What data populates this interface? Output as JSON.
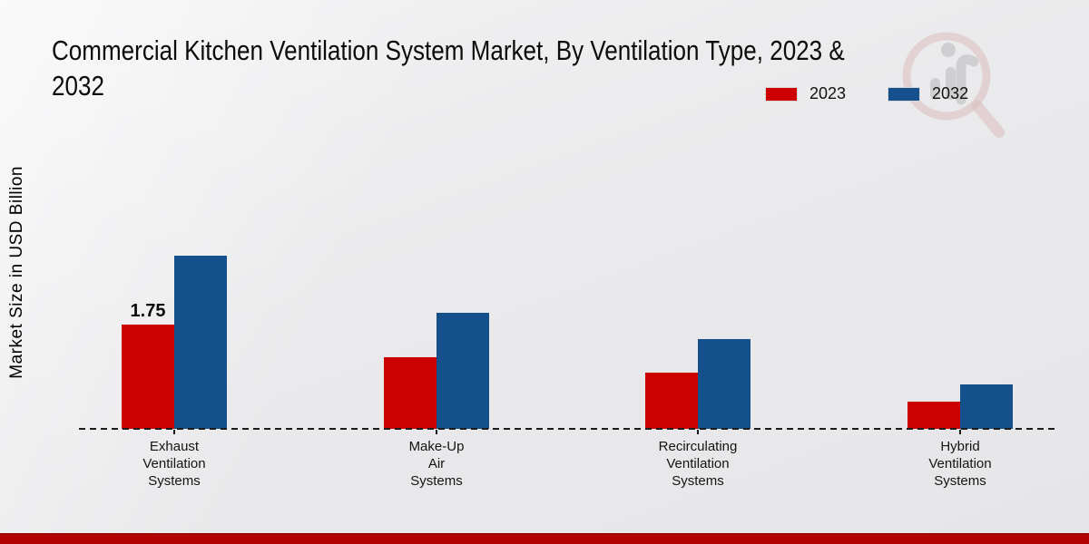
{
  "page": {
    "title_line1": "Commercial Kitchen Ventilation System Market, By Ventilation Type, 2023 &",
    "title_line2": "2032",
    "y_axis_label": "Market Size in USD Billion",
    "footer_bar_color": "#b30202",
    "background_color": "#eaeaec"
  },
  "legend": {
    "items": [
      {
        "label": "2023",
        "color": "#cc0000"
      },
      {
        "label": "2032",
        "color": "#14508c"
      }
    ]
  },
  "watermark": {
    "name": "magnifier-over-bar-chart-logo",
    "lens_color": "#c37272",
    "bars_color": "#c3c3c6"
  },
  "chart_data": {
    "type": "bar",
    "title": "Commercial Kitchen Ventilation System Market, By Ventilation Type, 2023 & 2032",
    "xlabel": "",
    "ylabel": "Market Size in USD Billion",
    "categories": [
      "Exhaust\nVentilation\nSystems",
      "Make-Up\nAir\nSystems",
      "Recirculating\nVentilation\nSystems",
      "Hybrid\nVentilation\nSystems"
    ],
    "series": [
      {
        "name": "2023",
        "color": "#cc0000",
        "values": [
          1.75,
          1.2,
          0.95,
          0.45
        ],
        "display_labels": [
          "1.75",
          null,
          null,
          null
        ]
      },
      {
        "name": "2032",
        "color": "#14508c",
        "values": [
          2.9,
          1.95,
          1.5,
          0.75
        ],
        "display_labels": [
          null,
          null,
          null,
          null
        ]
      }
    ],
    "ylim": [
      0,
      3.1
    ],
    "grid": false,
    "legend_position": "top-right",
    "baseline_style": "dashed",
    "units": "USD Billion"
  }
}
